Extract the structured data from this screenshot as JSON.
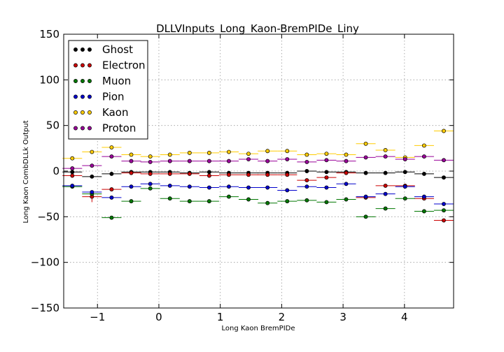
{
  "chart_data": {
    "type": "scatter",
    "title": "DLLVInputs_Long_Kaon-BremPIDe_Liny",
    "xlabel": "Long Kaon BremPIDe",
    "ylabel": "Long Kaon CombDLLk Output",
    "xlim": [
      -1.55,
      4.8
    ],
    "ylim": [
      -150,
      150
    ],
    "xticks": [
      -1,
      0,
      1,
      2,
      3,
      4
    ],
    "yticks": [
      -150,
      -100,
      -50,
      0,
      50,
      100,
      150
    ],
    "xtick_labels": [
      "−1",
      "0",
      "1",
      "2",
      "3",
      "4"
    ],
    "ytick_labels": [
      "−150",
      "−100",
      "−50",
      "0",
      "50",
      "100",
      "150"
    ],
    "grid": true,
    "legend_position": "top-left",
    "x": [
      -1.41,
      -1.09,
      -0.77,
      -0.45,
      -0.14,
      0.18,
      0.5,
      0.82,
      1.14,
      1.46,
      1.77,
      2.09,
      2.41,
      2.73,
      3.05,
      3.37,
      3.69,
      4.01,
      4.32,
      4.64
    ],
    "bin_half_width": 0.16,
    "series": [
      {
        "name": "Ghost",
        "color": "#000000",
        "values": [
          -1,
          -6,
          -3,
          -1,
          -1,
          -1,
          -2,
          -1,
          -2,
          -2,
          -2,
          -2,
          0,
          -1,
          -1,
          -2,
          -2,
          -1,
          -3,
          -7
        ],
        "errors": [
          0,
          0,
          0,
          0,
          0,
          0,
          0,
          0,
          0,
          0,
          0,
          0,
          0,
          0,
          0,
          0,
          0,
          0,
          0,
          0
        ]
      },
      {
        "name": "Electron",
        "color": "#cc0000",
        "values": [
          -5,
          -28,
          -20,
          -2,
          -3,
          -3,
          -3,
          -5,
          -4,
          -4,
          -4,
          -4,
          -10,
          -7,
          -2,
          -29,
          -16,
          -16,
          -30,
          -54
        ],
        "errors": [
          2,
          6,
          2,
          1,
          1,
          1,
          1,
          1,
          1,
          1,
          1,
          1,
          1,
          1,
          1,
          1,
          1,
          1,
          1,
          1
        ]
      },
      {
        "name": "Muon",
        "color": "#007700",
        "values": [
          -17,
          -25,
          -51,
          -33,
          -19,
          -30,
          -33,
          -33,
          -28,
          -31,
          -35,
          -33,
          -32,
          -34,
          -31,
          -50,
          -41,
          -30,
          -44,
          -43
        ],
        "errors": [
          0,
          0,
          0,
          0,
          0,
          0,
          0,
          0,
          0,
          0,
          0,
          0,
          0,
          0,
          0,
          0,
          0,
          0,
          0,
          0
        ]
      },
      {
        "name": "Pion",
        "color": "#0000cc",
        "values": [
          -16,
          -23,
          -29,
          -17,
          -14,
          -16,
          -17,
          -18,
          -17,
          -18,
          -18,
          -21,
          -17,
          -18,
          -14,
          -28,
          -25,
          -17,
          -28,
          -36
        ],
        "errors": [
          0,
          0,
          0,
          0,
          0,
          0,
          0,
          0,
          0,
          0,
          0,
          0,
          0,
          0,
          0,
          0,
          0,
          0,
          0,
          0
        ]
      },
      {
        "name": "Kaon",
        "color": "#ffcc00",
        "values": [
          14,
          21,
          26,
          18,
          16,
          18,
          20,
          20,
          21,
          19,
          22,
          22,
          18,
          19,
          18,
          30,
          23,
          15,
          28,
          44
        ],
        "errors": [
          0,
          0,
          0,
          0,
          0,
          0,
          0,
          0,
          0,
          0,
          0,
          0,
          0,
          0,
          0,
          0,
          0,
          0,
          0,
          0
        ]
      },
      {
        "name": "Proton",
        "color": "#990099",
        "values": [
          3,
          6,
          16,
          11,
          10,
          11,
          11,
          11,
          11,
          13,
          11,
          13,
          10,
          12,
          11,
          15,
          16,
          13,
          16,
          12
        ],
        "errors": [
          0,
          0,
          0,
          0,
          0,
          0,
          0,
          0,
          0,
          0,
          0,
          0,
          0,
          0,
          0,
          0,
          0,
          0,
          0,
          0
        ]
      }
    ]
  }
}
